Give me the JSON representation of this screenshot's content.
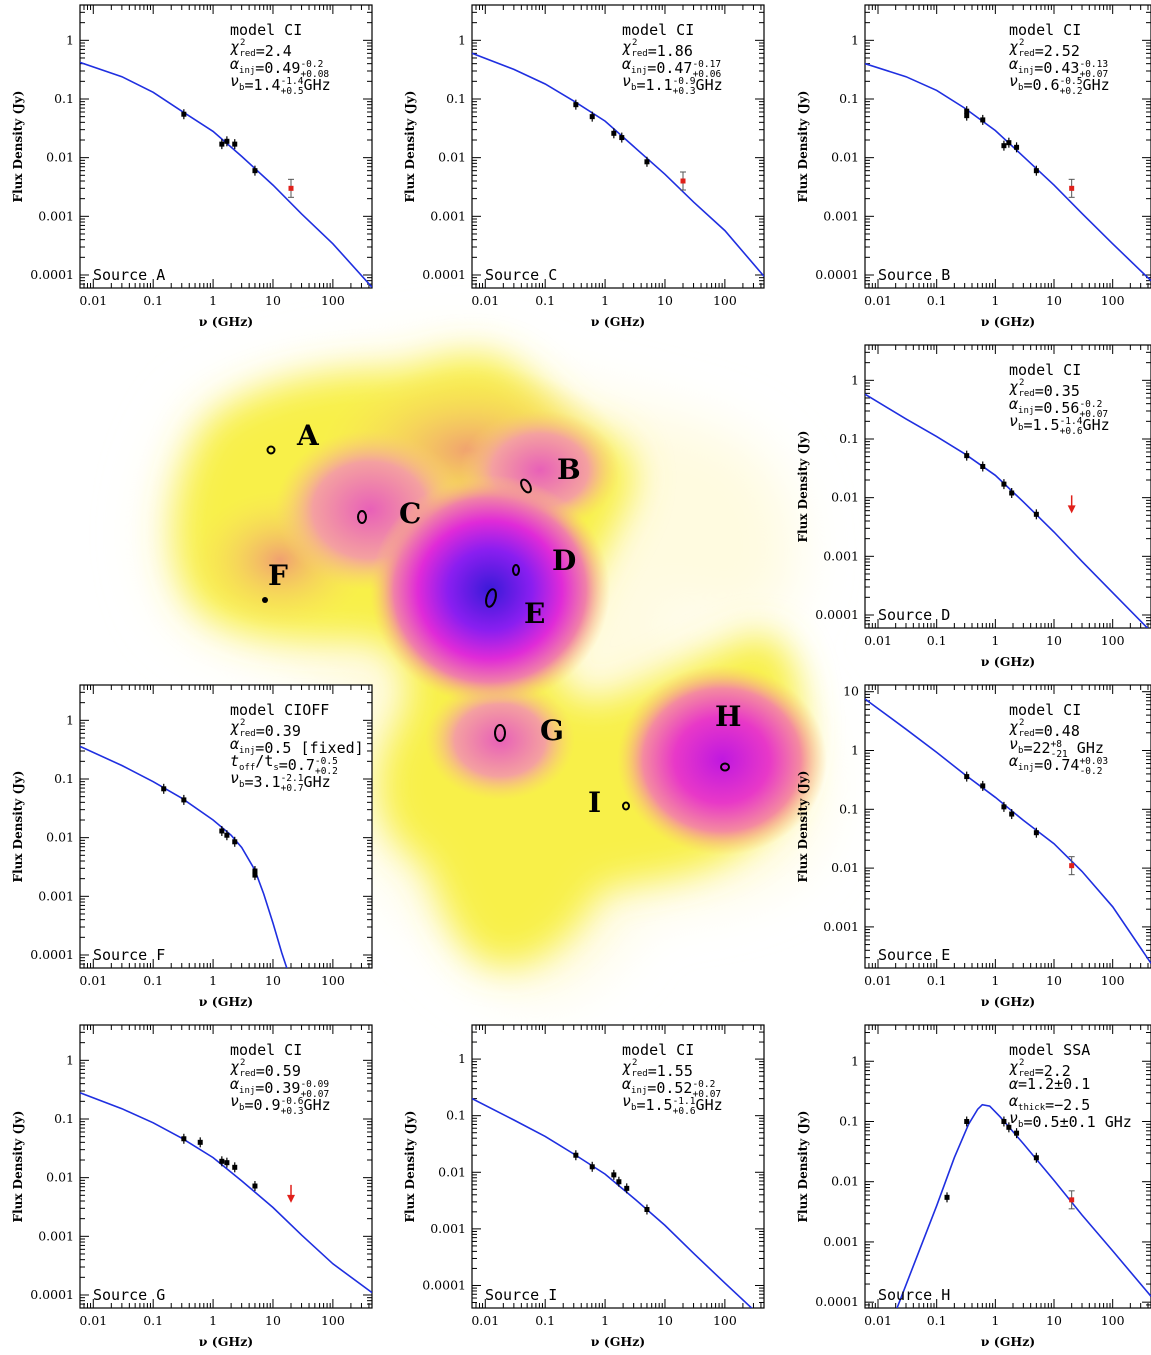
{
  "common": {
    "xlabel": "ν (GHz)",
    "ylabel": "Flux Density (Jy)",
    "x_scale": "log",
    "y_scale": "log",
    "xlim": [
      0.006,
      450
    ],
    "x_ticks": [
      "0.01",
      "0.1",
      "1",
      "10",
      "100"
    ],
    "curve_color": "#1f2fe0",
    "highlight_color": "#e0201a",
    "point_color": "#000000"
  },
  "map": {
    "labels": [
      "A",
      "B",
      "C",
      "D",
      "E",
      "F",
      "G",
      "H",
      "I"
    ]
  },
  "chart_data": [
    {
      "type": "scatter",
      "panel": "top-left",
      "source": "Source A",
      "title": "model CI",
      "params": [
        {
          "symbol": "χ",
          "sub": "red",
          "sup": "2",
          "value": "=2.4"
        },
        {
          "symbol": "α",
          "sub": "inj",
          "value": "=0.49",
          "err_up": "-0.2",
          "err_dn": "+0.08"
        },
        {
          "symbol": "ν",
          "sub": "b",
          "value": "=1.4",
          "err_up": "-1.4",
          "err_dn": "+0.5",
          "unit": "GHz"
        }
      ],
      "ylim": [
        6e-05,
        4
      ],
      "y_ticks": [
        "1",
        "0.1",
        "0.01",
        "0.001",
        "0.0001"
      ],
      "points": [
        [
          0.325,
          0.055
        ],
        [
          1.4,
          0.017
        ],
        [
          1.7,
          0.019
        ],
        [
          2.3,
          0.017
        ],
        [
          5.0,
          0.006
        ]
      ],
      "highlight_points": [
        [
          20,
          0.003
        ]
      ],
      "model_curve": [
        [
          0.006,
          0.42
        ],
        [
          0.03,
          0.24
        ],
        [
          0.1,
          0.13
        ],
        [
          0.3,
          0.062
        ],
        [
          1,
          0.028
        ],
        [
          3,
          0.0105
        ],
        [
          10,
          0.0034
        ],
        [
          30,
          0.0011
        ],
        [
          100,
          0.00034
        ],
        [
          450,
          6.2e-05
        ]
      ]
    },
    {
      "type": "scatter",
      "panel": "top-middle",
      "source": "Source C",
      "title": "model CI",
      "params": [
        {
          "symbol": "χ",
          "sub": "red",
          "sup": "2",
          "value": "=1.86"
        },
        {
          "symbol": "α",
          "sub": "inj",
          "value": "=0.47",
          "err_up": "-0.17",
          "err_dn": "+0.06"
        },
        {
          "symbol": "ν",
          "sub": "b",
          "value": "=1.1",
          "err_up": "-0.9",
          "err_dn": "+0.3",
          "unit": "GHz"
        }
      ],
      "ylim": [
        6e-05,
        4
      ],
      "y_ticks": [
        "1",
        "0.1",
        "0.01",
        "0.001",
        "0.0001"
      ],
      "points": [
        [
          0.325,
          0.08
        ],
        [
          0.61,
          0.05
        ],
        [
          1.4,
          0.026
        ],
        [
          1.9,
          0.022
        ],
        [
          5.0,
          0.0085
        ]
      ],
      "highlight_points": [
        [
          20,
          0.004
        ]
      ],
      "model_curve": [
        [
          0.006,
          0.6
        ],
        [
          0.03,
          0.32
        ],
        [
          0.1,
          0.18
        ],
        [
          0.3,
          0.092
        ],
        [
          1,
          0.042
        ],
        [
          3,
          0.0155
        ],
        [
          10,
          0.0052
        ],
        [
          30,
          0.00175
        ],
        [
          100,
          0.00057
        ],
        [
          450,
          9.5e-05
        ]
      ]
    },
    {
      "type": "scatter",
      "panel": "top-right",
      "source": "Source B",
      "title": "model CI",
      "params": [
        {
          "symbol": "χ",
          "sub": "red",
          "sup": "2",
          "value": "=2.52"
        },
        {
          "symbol": "α",
          "sub": "inj",
          "value": "=0.43",
          "err_up": "-0.13",
          "err_dn": "+0.07"
        },
        {
          "symbol": "ν",
          "sub": "b",
          "value": "=0.6",
          "err_up": "-0.5",
          "err_dn": "+0.2",
          "unit": "GHz"
        }
      ],
      "ylim": [
        6e-05,
        4
      ],
      "y_ticks": [
        "1",
        "0.1",
        "0.01",
        "0.001",
        "0.0001"
      ],
      "points": [
        [
          0.325,
          0.062
        ],
        [
          0.325,
          0.052
        ],
        [
          0.61,
          0.044
        ],
        [
          1.4,
          0.016
        ],
        [
          1.7,
          0.018
        ],
        [
          2.3,
          0.015
        ],
        [
          5.0,
          0.006
        ]
      ],
      "highlight_points": [
        [
          20,
          0.003
        ]
      ],
      "model_curve": [
        [
          0.006,
          0.4
        ],
        [
          0.03,
          0.24
        ],
        [
          0.1,
          0.14
        ],
        [
          0.3,
          0.07
        ],
        [
          1,
          0.029
        ],
        [
          3,
          0.0105
        ],
        [
          10,
          0.0034
        ],
        [
          30,
          0.00112
        ],
        [
          100,
          0.00034
        ],
        [
          450,
          8e-05
        ]
      ]
    },
    {
      "type": "scatter",
      "panel": "middle-right",
      "source": "Source D",
      "title": "model CI",
      "params": [
        {
          "symbol": "χ",
          "sub": "red",
          "sup": "2",
          "value": "=0.35"
        },
        {
          "symbol": "α",
          "sub": "inj",
          "value": "=0.56",
          "err_up": "-0.2",
          "err_dn": "+0.07"
        },
        {
          "symbol": "ν",
          "sub": "b",
          "value": "=1.5",
          "err_up": "-1.4",
          "err_dn": "+0.6",
          "unit": "GHz"
        }
      ],
      "ylim": [
        6e-05,
        4
      ],
      "y_ticks": [
        "1",
        "0.1",
        "0.01",
        "0.001",
        "0.0001"
      ],
      "points": [
        [
          0.325,
          0.052
        ],
        [
          0.61,
          0.034
        ],
        [
          1.4,
          0.017
        ],
        [
          1.9,
          0.012
        ],
        [
          5.0,
          0.0052
        ]
      ],
      "upper_limits": [
        [
          20,
          0.008
        ]
      ],
      "model_curve": [
        [
          0.006,
          0.58
        ],
        [
          0.03,
          0.22
        ],
        [
          0.1,
          0.11
        ],
        [
          0.3,
          0.056
        ],
        [
          1,
          0.024
        ],
        [
          3,
          0.0085
        ],
        [
          10,
          0.0026
        ],
        [
          30,
          0.00082
        ],
        [
          100,
          0.00024
        ],
        [
          450,
          5.2e-05
        ]
      ]
    },
    {
      "type": "scatter",
      "panel": "center-left",
      "source": "Source F",
      "title": "model CIOFF",
      "params": [
        {
          "symbol": "χ",
          "sub": "red",
          "sup": "2",
          "value": "=0.39"
        },
        {
          "symbol": "α",
          "sub": "inj",
          "value": "=0.5 [fixed]"
        },
        {
          "symbol": "t",
          "sub": "off",
          "tail": "/t",
          "tail_sub": "s",
          "value": "=0.7",
          "err_up": "-0.5",
          "err_dn": "+0.2"
        },
        {
          "symbol": "ν",
          "sub": "b",
          "value": "=3.1",
          "err_up": "-2.1",
          "err_dn": "+0.7",
          "unit": "GHz"
        }
      ],
      "ylim": [
        6e-05,
        4
      ],
      "y_ticks": [
        "1",
        "0.1",
        "0.01",
        "0.001",
        "0.0001"
      ],
      "points": [
        [
          0.15,
          0.068
        ],
        [
          0.325,
          0.044
        ],
        [
          1.4,
          0.013
        ],
        [
          1.7,
          0.011
        ],
        [
          2.3,
          0.0085
        ],
        [
          5.0,
          0.0027
        ],
        [
          5.0,
          0.0023
        ]
      ],
      "model_curve": [
        [
          0.006,
          0.36
        ],
        [
          0.03,
          0.17
        ],
        [
          0.1,
          0.09
        ],
        [
          0.3,
          0.047
        ],
        [
          1,
          0.02
        ],
        [
          2,
          0.011
        ],
        [
          3,
          0.0068
        ],
        [
          5,
          0.0028
        ],
        [
          7,
          0.0011
        ],
        [
          10,
          0.00035
        ],
        [
          14,
          0.00011
        ],
        [
          18,
          5e-05
        ]
      ]
    },
    {
      "type": "scatter",
      "panel": "center-right",
      "source": "Source E",
      "title": "model CI",
      "params": [
        {
          "symbol": "χ",
          "sub": "red",
          "sup": "2",
          "value": "=0.48"
        },
        {
          "symbol": "ν",
          "sub": "b",
          "value": "=22",
          "err_up": "+8",
          "err_dn": "-21",
          "unit": " GHz"
        },
        {
          "symbol": "α",
          "sub": "inj",
          "value": "=0.74",
          "err_up": "+0.03",
          "err_dn": "-0.2"
        }
      ],
      "ylim": [
        0.0002,
        13
      ],
      "y_ticks": [
        "10",
        "1",
        "0.1",
        "0.01",
        "0.001"
      ],
      "points": [
        [
          0.325,
          0.36
        ],
        [
          0.61,
          0.25
        ],
        [
          1.4,
          0.11
        ],
        [
          1.9,
          0.083
        ],
        [
          5.0,
          0.04
        ]
      ],
      "highlight_points": [
        [
          20,
          0.011
        ]
      ],
      "model_curve": [
        [
          0.006,
          7.5
        ],
        [
          0.03,
          2.3
        ],
        [
          0.1,
          0.93
        ],
        [
          0.3,
          0.39
        ],
        [
          1,
          0.16
        ],
        [
          3,
          0.065
        ],
        [
          10,
          0.026
        ],
        [
          30,
          0.0088
        ],
        [
          100,
          0.0022
        ],
        [
          450,
          0.00024
        ]
      ]
    },
    {
      "type": "scatter",
      "panel": "bottom-left",
      "source": "Source G",
      "title": "model CI",
      "params": [
        {
          "symbol": "χ",
          "sub": "red",
          "sup": "2",
          "value": "=0.59"
        },
        {
          "symbol": "α",
          "sub": "inj",
          "value": "=0.39",
          "err_up": "-0.09",
          "err_dn": "+0.07"
        },
        {
          "symbol": "ν",
          "sub": "b",
          "value": "=0.9",
          "err_up": "-0.6",
          "err_dn": "+0.3",
          "unit": "GHz"
        }
      ],
      "ylim": [
        6e-05,
        4
      ],
      "y_ticks": [
        "1",
        "0.1",
        "0.01",
        "0.001",
        "0.0001"
      ],
      "points": [
        [
          0.325,
          0.046
        ],
        [
          0.61,
          0.04
        ],
        [
          1.4,
          0.019
        ],
        [
          1.7,
          0.018
        ],
        [
          2.3,
          0.015
        ],
        [
          5.0,
          0.0072
        ]
      ],
      "upper_limits": [
        [
          20,
          0.0055
        ]
      ],
      "model_curve": [
        [
          0.006,
          0.28
        ],
        [
          0.03,
          0.15
        ],
        [
          0.1,
          0.086
        ],
        [
          0.3,
          0.047
        ],
        [
          1,
          0.022
        ],
        [
          3,
          0.0088
        ],
        [
          10,
          0.0031
        ],
        [
          30,
          0.00105
        ],
        [
          100,
          0.00034
        ],
        [
          450,
          0.00011
        ]
      ]
    },
    {
      "type": "scatter",
      "panel": "bottom-middle",
      "source": "Source I",
      "title": "model CI",
      "params": [
        {
          "symbol": "χ",
          "sub": "red",
          "sup": "2",
          "value": "=1.55"
        },
        {
          "symbol": "α",
          "sub": "inj",
          "value": "=0.52",
          "err_up": "-0.2",
          "err_dn": "+0.07"
        },
        {
          "symbol": "ν",
          "sub": "b",
          "value": "=1.5",
          "err_up": "-1.1",
          "err_dn": "+0.6",
          "unit": "GHz"
        }
      ],
      "ylim": [
        4e-05,
        4
      ],
      "y_ticks": [
        "1",
        "0.1",
        "0.01",
        "0.001",
        "0.0001"
      ],
      "points": [
        [
          0.325,
          0.02
        ],
        [
          0.61,
          0.0125
        ],
        [
          1.4,
          0.009
        ],
        [
          1.7,
          0.0068
        ],
        [
          2.3,
          0.0052
        ],
        [
          5.0,
          0.0022
        ]
      ],
      "model_curve": [
        [
          0.006,
          0.2
        ],
        [
          0.03,
          0.084
        ],
        [
          0.1,
          0.043
        ],
        [
          0.3,
          0.021
        ],
        [
          1,
          0.0093
        ],
        [
          3,
          0.0035
        ],
        [
          10,
          0.00115
        ],
        [
          30,
          0.00037
        ],
        [
          100,
          0.00011
        ],
        [
          450,
          2.5e-05
        ]
      ]
    },
    {
      "type": "scatter",
      "panel": "bottom-right",
      "source": "Source H",
      "title": "model SSA",
      "params": [
        {
          "symbol": "χ",
          "sub": "red",
          "sup": "2",
          "value": "=2.2"
        },
        {
          "symbol": "α",
          "value": "=1.2±0.1"
        },
        {
          "symbol": "α",
          "sub": "thick",
          "value": "=−2.5"
        },
        {
          "symbol": "ν",
          "sub": "b",
          "value": "=0.5±0.1 GHz"
        }
      ],
      "ylim": [
        8e-05,
        4
      ],
      "y_ticks": [
        "1",
        "0.1",
        "0.01",
        "0.001",
        "0.0001"
      ],
      "points": [
        [
          0.15,
          0.0055
        ],
        [
          0.325,
          0.1
        ],
        [
          1.4,
          0.1
        ],
        [
          1.7,
          0.08
        ],
        [
          2.3,
          0.064
        ],
        [
          5.0,
          0.025
        ]
      ],
      "highlight_points": [
        [
          20,
          0.005
        ]
      ],
      "model_curve": [
        [
          0.02,
          7e-05
        ],
        [
          0.05,
          0.0007
        ],
        [
          0.1,
          0.004
        ],
        [
          0.2,
          0.025
        ],
        [
          0.35,
          0.09
        ],
        [
          0.5,
          0.16
        ],
        [
          0.6,
          0.19
        ],
        [
          0.8,
          0.18
        ],
        [
          1.2,
          0.12
        ],
        [
          3,
          0.043
        ],
        [
          10,
          0.0105
        ],
        [
          30,
          0.0028
        ],
        [
          100,
          0.00071
        ],
        [
          450,
          0.000125
        ]
      ]
    }
  ]
}
